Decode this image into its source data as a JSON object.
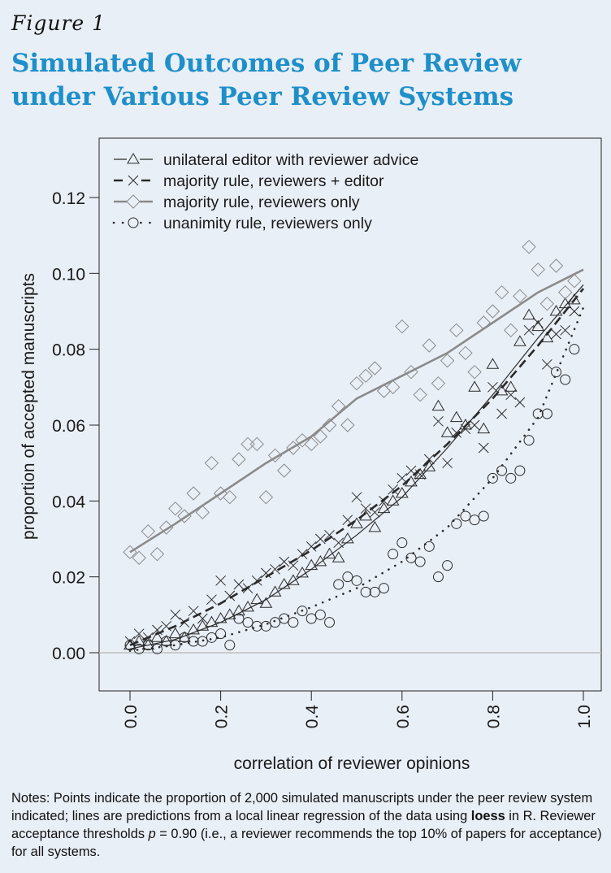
{
  "figure_label": "Figure 1",
  "title": "Simulated Outcomes of Peer Review under Various Peer Review Systems",
  "notes": {
    "before_bold": "Notes: Points indicate the proportion of 2,000 simulated manuscripts under the peer review system indicated; lines are predictions from a local linear regression of the data using ",
    "bold": "loess",
    "after_bold": " in R. Reviewer acceptance thresholds ",
    "symbol": "p",
    "after_symbol": " = 0.90 (i.e., a reviewer recommends the top 10% of papers for acceptance) for all systems."
  },
  "colors": {
    "title": "#1e8fc9",
    "background": "#e9eff7",
    "majority_reviewers_only": "#8a8a8a",
    "dark_series": "#2a2a2a",
    "zero_line": "#bdbdbd"
  },
  "chart_data": {
    "type": "scatter",
    "xlabel": "correlation of reviewer opinions",
    "ylabel": "proportion of accepted manuscripts",
    "xlim": [
      0,
      1
    ],
    "ylim": [
      0,
      0.13
    ],
    "xticks": [
      "0.0",
      "0.2",
      "0.4",
      "0.6",
      "0.8",
      "1.0"
    ],
    "yticks": [
      "0.00",
      "0.02",
      "0.04",
      "0.06",
      "0.08",
      "0.10",
      "0.12"
    ],
    "grid": false,
    "legend_position": "top-left",
    "series": [
      {
        "name": "unilateral editor with reviewer advice",
        "marker": "triangle",
        "line": "solid-thin",
        "points": [
          [
            0.0,
            0.002
          ],
          [
            0.02,
            0.003
          ],
          [
            0.04,
            0.002
          ],
          [
            0.06,
            0.004
          ],
          [
            0.08,
            0.003
          ],
          [
            0.1,
            0.005
          ],
          [
            0.12,
            0.004
          ],
          [
            0.14,
            0.006
          ],
          [
            0.16,
            0.007
          ],
          [
            0.18,
            0.008
          ],
          [
            0.2,
            0.009
          ],
          [
            0.22,
            0.01
          ],
          [
            0.24,
            0.011
          ],
          [
            0.26,
            0.012
          ],
          [
            0.28,
            0.014
          ],
          [
            0.3,
            0.013
          ],
          [
            0.32,
            0.016
          ],
          [
            0.34,
            0.018
          ],
          [
            0.36,
            0.019
          ],
          [
            0.38,
            0.021
          ],
          [
            0.4,
            0.023
          ],
          [
            0.42,
            0.024
          ],
          [
            0.44,
            0.026
          ],
          [
            0.46,
            0.025
          ],
          [
            0.48,
            0.03
          ],
          [
            0.5,
            0.034
          ],
          [
            0.52,
            0.036
          ],
          [
            0.54,
            0.033
          ],
          [
            0.56,
            0.038
          ],
          [
            0.58,
            0.04
          ],
          [
            0.6,
            0.042
          ],
          [
            0.62,
            0.045
          ],
          [
            0.64,
            0.047
          ],
          [
            0.66,
            0.049
          ],
          [
            0.68,
            0.065
          ],
          [
            0.7,
            0.058
          ],
          [
            0.72,
            0.062
          ],
          [
            0.74,
            0.06
          ],
          [
            0.76,
            0.07
          ],
          [
            0.78,
            0.059
          ],
          [
            0.8,
            0.076
          ],
          [
            0.82,
            0.069
          ],
          [
            0.84,
            0.07
          ],
          [
            0.86,
            0.082
          ],
          [
            0.88,
            0.089
          ],
          [
            0.9,
            0.086
          ],
          [
            0.92,
            0.083
          ],
          [
            0.94,
            0.09
          ],
          [
            0.96,
            0.092
          ],
          [
            0.98,
            0.093
          ]
        ],
        "fit": [
          [
            0.0,
            0.001
          ],
          [
            0.1,
            0.0035
          ],
          [
            0.2,
            0.008
          ],
          [
            0.3,
            0.014
          ],
          [
            0.4,
            0.022
          ],
          [
            0.5,
            0.031
          ],
          [
            0.6,
            0.041
          ],
          [
            0.7,
            0.054
          ],
          [
            0.8,
            0.068
          ],
          [
            0.9,
            0.083
          ],
          [
            1.0,
            0.097
          ]
        ]
      },
      {
        "name": "majority rule, reviewers + editor",
        "marker": "x",
        "line": "dashed",
        "points": [
          [
            0.0,
            0.003
          ],
          [
            0.02,
            0.005
          ],
          [
            0.04,
            0.004
          ],
          [
            0.06,
            0.006
          ],
          [
            0.08,
            0.007
          ],
          [
            0.1,
            0.01
          ],
          [
            0.12,
            0.008
          ],
          [
            0.14,
            0.011
          ],
          [
            0.16,
            0.009
          ],
          [
            0.18,
            0.014
          ],
          [
            0.2,
            0.019
          ],
          [
            0.22,
            0.015
          ],
          [
            0.24,
            0.018
          ],
          [
            0.26,
            0.017
          ],
          [
            0.28,
            0.019
          ],
          [
            0.3,
            0.021
          ],
          [
            0.32,
            0.022
          ],
          [
            0.34,
            0.024
          ],
          [
            0.36,
            0.023
          ],
          [
            0.38,
            0.026
          ],
          [
            0.4,
            0.028
          ],
          [
            0.42,
            0.03
          ],
          [
            0.44,
            0.031
          ],
          [
            0.46,
            0.029
          ],
          [
            0.48,
            0.035
          ],
          [
            0.5,
            0.041
          ],
          [
            0.52,
            0.038
          ],
          [
            0.54,
            0.037
          ],
          [
            0.56,
            0.04
          ],
          [
            0.58,
            0.043
          ],
          [
            0.6,
            0.046
          ],
          [
            0.62,
            0.048
          ],
          [
            0.64,
            0.047
          ],
          [
            0.66,
            0.051
          ],
          [
            0.68,
            0.061
          ],
          [
            0.7,
            0.05
          ],
          [
            0.72,
            0.058
          ],
          [
            0.74,
            0.059
          ],
          [
            0.76,
            0.06
          ],
          [
            0.78,
            0.054
          ],
          [
            0.8,
            0.07
          ],
          [
            0.82,
            0.063
          ],
          [
            0.84,
            0.068
          ],
          [
            0.86,
            0.066
          ],
          [
            0.88,
            0.085
          ],
          [
            0.9,
            0.087
          ],
          [
            0.92,
            0.076
          ],
          [
            0.94,
            0.084
          ],
          [
            0.96,
            0.085
          ],
          [
            0.98,
            0.09
          ]
        ],
        "fit": [
          [
            0.0,
            0.002
          ],
          [
            0.1,
            0.007
          ],
          [
            0.2,
            0.013
          ],
          [
            0.3,
            0.02
          ],
          [
            0.4,
            0.027
          ],
          [
            0.5,
            0.035
          ],
          [
            0.6,
            0.044
          ],
          [
            0.7,
            0.055
          ],
          [
            0.8,
            0.067
          ],
          [
            0.9,
            0.081
          ],
          [
            1.0,
            0.096
          ]
        ]
      },
      {
        "name": "majority rule, reviewers only",
        "marker": "diamond",
        "line": "solid-thick",
        "points": [
          [
            0.0,
            0.0265
          ],
          [
            0.02,
            0.025
          ],
          [
            0.04,
            0.032
          ],
          [
            0.06,
            0.026
          ],
          [
            0.08,
            0.033
          ],
          [
            0.1,
            0.038
          ],
          [
            0.12,
            0.036
          ],
          [
            0.14,
            0.042
          ],
          [
            0.16,
            0.037
          ],
          [
            0.18,
            0.05
          ],
          [
            0.2,
            0.042
          ],
          [
            0.22,
            0.041
          ],
          [
            0.24,
            0.051
          ],
          [
            0.26,
            0.055
          ],
          [
            0.28,
            0.055
          ],
          [
            0.3,
            0.041
          ],
          [
            0.32,
            0.052
          ],
          [
            0.34,
            0.048
          ],
          [
            0.36,
            0.054
          ],
          [
            0.38,
            0.056
          ],
          [
            0.4,
            0.055
          ],
          [
            0.42,
            0.057
          ],
          [
            0.44,
            0.06
          ],
          [
            0.46,
            0.065
          ],
          [
            0.48,
            0.06
          ],
          [
            0.5,
            0.071
          ],
          [
            0.52,
            0.073
          ],
          [
            0.54,
            0.075
          ],
          [
            0.56,
            0.069
          ],
          [
            0.58,
            0.07
          ],
          [
            0.6,
            0.086
          ],
          [
            0.62,
            0.074
          ],
          [
            0.64,
            0.068
          ],
          [
            0.66,
            0.081
          ],
          [
            0.68,
            0.071
          ],
          [
            0.7,
            0.077
          ],
          [
            0.72,
            0.085
          ],
          [
            0.74,
            0.079
          ],
          [
            0.76,
            0.074
          ],
          [
            0.78,
            0.087
          ],
          [
            0.8,
            0.09
          ],
          [
            0.82,
            0.095
          ],
          [
            0.84,
            0.085
          ],
          [
            0.86,
            0.094
          ],
          [
            0.88,
            0.107
          ],
          [
            0.9,
            0.101
          ],
          [
            0.92,
            0.092
          ],
          [
            0.94,
            0.102
          ],
          [
            0.96,
            0.095
          ],
          [
            0.98,
            0.098
          ]
        ],
        "fit": [
          [
            0.0,
            0.0265
          ],
          [
            0.1,
            0.034
          ],
          [
            0.2,
            0.042
          ],
          [
            0.3,
            0.05
          ],
          [
            0.4,
            0.057
          ],
          [
            0.5,
            0.067
          ],
          [
            0.6,
            0.073
          ],
          [
            0.7,
            0.079
          ],
          [
            0.8,
            0.087
          ],
          [
            0.9,
            0.095
          ],
          [
            1.0,
            0.101
          ]
        ]
      },
      {
        "name": "unanimity rule, reviewers only",
        "marker": "circle",
        "line": "dotted",
        "points": [
          [
            0.0,
            0.002
          ],
          [
            0.02,
            0.001
          ],
          [
            0.04,
            0.002
          ],
          [
            0.06,
            0.001
          ],
          [
            0.08,
            0.003
          ],
          [
            0.1,
            0.002
          ],
          [
            0.12,
            0.004
          ],
          [
            0.14,
            0.003
          ],
          [
            0.16,
            0.003
          ],
          [
            0.18,
            0.004
          ],
          [
            0.2,
            0.005
          ],
          [
            0.22,
            0.002
          ],
          [
            0.24,
            0.009
          ],
          [
            0.26,
            0.008
          ],
          [
            0.28,
            0.007
          ],
          [
            0.3,
            0.007
          ],
          [
            0.32,
            0.008
          ],
          [
            0.34,
            0.009
          ],
          [
            0.36,
            0.008
          ],
          [
            0.38,
            0.011
          ],
          [
            0.4,
            0.009
          ],
          [
            0.42,
            0.01
          ],
          [
            0.44,
            0.008
          ],
          [
            0.46,
            0.018
          ],
          [
            0.48,
            0.02
          ],
          [
            0.5,
            0.019
          ],
          [
            0.52,
            0.016
          ],
          [
            0.54,
            0.016
          ],
          [
            0.56,
            0.017
          ],
          [
            0.58,
            0.026
          ],
          [
            0.6,
            0.029
          ],
          [
            0.62,
            0.025
          ],
          [
            0.64,
            0.024
          ],
          [
            0.66,
            0.028
          ],
          [
            0.68,
            0.02
          ],
          [
            0.7,
            0.023
          ],
          [
            0.72,
            0.034
          ],
          [
            0.74,
            0.036
          ],
          [
            0.76,
            0.035
          ],
          [
            0.78,
            0.036
          ],
          [
            0.8,
            0.046
          ],
          [
            0.82,
            0.048
          ],
          [
            0.84,
            0.046
          ],
          [
            0.86,
            0.048
          ],
          [
            0.88,
            0.056
          ],
          [
            0.9,
            0.063
          ],
          [
            0.92,
            0.063
          ],
          [
            0.94,
            0.074
          ],
          [
            0.96,
            0.072
          ],
          [
            0.98,
            0.08
          ]
        ],
        "fit": [
          [
            0.0,
            0.0005
          ],
          [
            0.1,
            0.002
          ],
          [
            0.2,
            0.004
          ],
          [
            0.3,
            0.0075
          ],
          [
            0.4,
            0.012
          ],
          [
            0.5,
            0.017
          ],
          [
            0.6,
            0.024
          ],
          [
            0.7,
            0.033
          ],
          [
            0.8,
            0.046
          ],
          [
            0.9,
            0.062
          ],
          [
            1.0,
            0.091
          ]
        ]
      }
    ]
  }
}
